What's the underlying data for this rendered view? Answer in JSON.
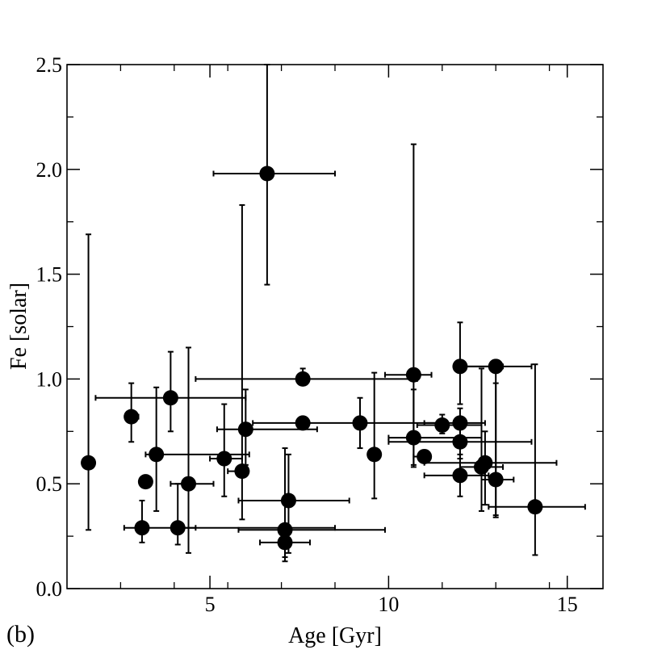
{
  "chart_data": {
    "type": "scatter",
    "panel_label": "(b)",
    "title": "",
    "xlabel": "Age [Gyr]",
    "ylabel": "Fe [solar]",
    "xlim": [
      1,
      16
    ],
    "ylim": [
      0.0,
      2.5
    ],
    "x_ticks": [
      5,
      10,
      15
    ],
    "x_tick_labels": [
      "5",
      "10",
      "15"
    ],
    "x_minor_step": 1.5,
    "y_ticks": [
      0.0,
      0.5,
      1.0,
      1.5,
      2.0,
      2.5
    ],
    "y_tick_labels": [
      "0.0",
      "0.5",
      "1.0",
      "1.5",
      "2.0",
      "2.5"
    ],
    "y_minor_step": 0.25,
    "grid": false,
    "colors": {
      "marker": "#000000",
      "axes": "#000000",
      "background": "#ffffff"
    },
    "series": [
      {
        "name": "data",
        "points": [
          {
            "x": 1.6,
            "y": 0.6,
            "xlo": 1.6,
            "xhi": 1.6,
            "ylo": 0.28,
            "yhi": 1.69
          },
          {
            "x": 2.8,
            "y": 0.82,
            "xlo": 2.7,
            "xhi": 3.0,
            "ylo": 0.7,
            "yhi": 0.98
          },
          {
            "x": 3.9,
            "y": 0.91,
            "xlo": 1.8,
            "xhi": 6.0,
            "ylo": 0.75,
            "yhi": 1.13
          },
          {
            "x": 3.5,
            "y": 0.64,
            "xlo": 3.2,
            "xhi": 6.1,
            "ylo": 0.37,
            "yhi": 0.96
          },
          {
            "x": 3.2,
            "y": 0.51,
            "xlo": 3.1,
            "xhi": 3.3,
            "ylo": 0.48,
            "yhi": 0.54
          },
          {
            "x": 3.1,
            "y": 0.29,
            "xlo": 2.6,
            "xhi": 4.6,
            "ylo": 0.22,
            "yhi": 0.42
          },
          {
            "x": 4.1,
            "y": 0.29,
            "xlo": 4.0,
            "xhi": 8.5,
            "ylo": 0.21,
            "yhi": 0.5
          },
          {
            "x": 4.4,
            "y": 0.5,
            "xlo": 3.9,
            "xhi": 5.1,
            "ylo": 0.17,
            "yhi": 1.15
          },
          {
            "x": 5.4,
            "y": 0.62,
            "xlo": 5.0,
            "xhi": 5.9,
            "ylo": 0.44,
            "yhi": 0.88
          },
          {
            "x": 5.9,
            "y": 0.56,
            "xlo": 5.5,
            "xhi": 6.0,
            "ylo": 0.33,
            "yhi": 1.83
          },
          {
            "x": 6.0,
            "y": 0.76,
            "xlo": 5.2,
            "xhi": 8.0,
            "ylo": 0.59,
            "yhi": 0.95
          },
          {
            "x": 6.6,
            "y": 1.98,
            "xlo": 5.1,
            "xhi": 8.5,
            "ylo": 1.45,
            "yhi": 2.5
          },
          {
            "x": 7.6,
            "y": 1.0,
            "xlo": 4.6,
            "xhi": 10.8,
            "ylo": 0.97,
            "yhi": 1.05
          },
          {
            "x": 7.6,
            "y": 0.79,
            "xlo": 6.2,
            "xhi": 11.6,
            "ylo": 0.76,
            "yhi": 0.82
          },
          {
            "x": 7.2,
            "y": 0.42,
            "xlo": 5.8,
            "xhi": 8.9,
            "ylo": 0.17,
            "yhi": 0.64
          },
          {
            "x": 7.1,
            "y": 0.28,
            "xlo": 5.8,
            "xhi": 9.9,
            "ylo": 0.15,
            "yhi": 0.67
          },
          {
            "x": 7.1,
            "y": 0.22,
            "xlo": 6.4,
            "xhi": 7.8,
            "ylo": 0.13,
            "yhi": 0.26
          },
          {
            "x": 9.2,
            "y": 0.79,
            "xlo": 9.1,
            "xhi": 9.3,
            "ylo": 0.67,
            "yhi": 0.91
          },
          {
            "x": 9.6,
            "y": 0.64,
            "xlo": 9.6,
            "xhi": 9.6,
            "ylo": 0.43,
            "yhi": 1.03
          },
          {
            "x": 10.7,
            "y": 1.02,
            "xlo": 9.9,
            "xhi": 11.2,
            "ylo": 0.58,
            "yhi": 2.12
          },
          {
            "x": 10.7,
            "y": 0.72,
            "xlo": 10.0,
            "xhi": 12.6,
            "ylo": 0.59,
            "yhi": 0.95
          },
          {
            "x": 11.0,
            "y": 0.63,
            "xlo": 10.7,
            "xhi": 11.1,
            "ylo": 0.62,
            "yhi": 0.64
          },
          {
            "x": 11.5,
            "y": 0.78,
            "xlo": 10.8,
            "xhi": 12.6,
            "ylo": 0.74,
            "yhi": 0.83
          },
          {
            "x": 12.0,
            "y": 1.06,
            "xlo": 12.0,
            "xhi": 13.2,
            "ylo": 0.88,
            "yhi": 1.27
          },
          {
            "x": 12.0,
            "y": 0.79,
            "xlo": 11.0,
            "xhi": 12.7,
            "ylo": 0.72,
            "yhi": 0.86
          },
          {
            "x": 12.0,
            "y": 0.7,
            "xlo": 10.0,
            "xhi": 14.0,
            "ylo": 0.62,
            "yhi": 0.81
          },
          {
            "x": 12.0,
            "y": 0.54,
            "xlo": 11.0,
            "xhi": 12.8,
            "ylo": 0.44,
            "yhi": 0.64
          },
          {
            "x": 13.0,
            "y": 1.06,
            "xlo": 12.0,
            "xhi": 14.0,
            "ylo": 0.35,
            "yhi": 1.07
          },
          {
            "x": 12.6,
            "y": 0.58,
            "xlo": 12.0,
            "xhi": 13.2,
            "ylo": 0.37,
            "yhi": 1.05
          },
          {
            "x": 12.7,
            "y": 0.6,
            "xlo": 11.0,
            "xhi": 14.7,
            "ylo": 0.4,
            "yhi": 0.75
          },
          {
            "x": 13.0,
            "y": 0.52,
            "xlo": 12.6,
            "xhi": 13.5,
            "ylo": 0.34,
            "yhi": 0.98
          },
          {
            "x": 14.1,
            "y": 0.39,
            "xlo": 12.8,
            "xhi": 15.5,
            "ylo": 0.16,
            "yhi": 1.07
          }
        ]
      }
    ]
  }
}
